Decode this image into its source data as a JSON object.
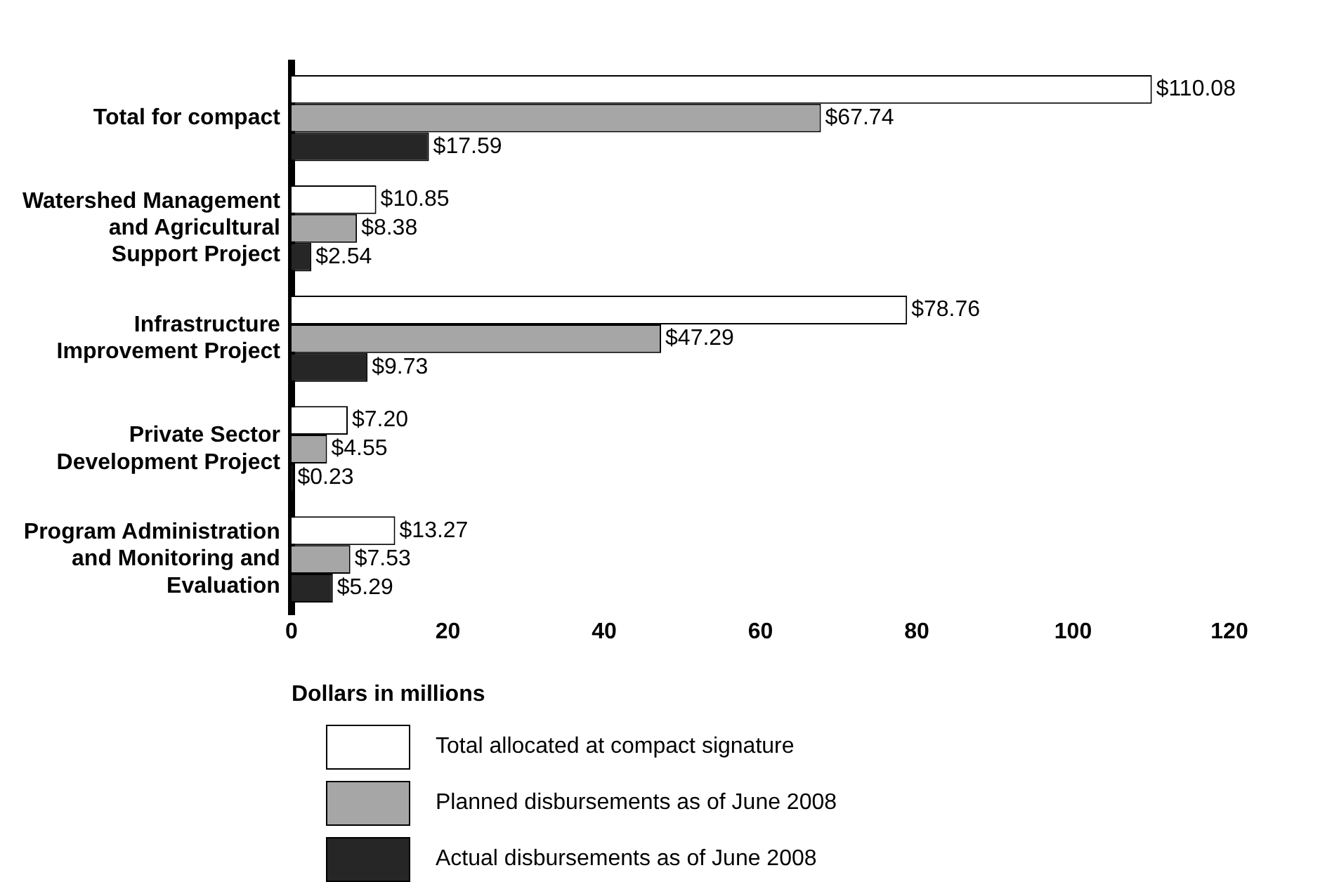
{
  "chart_data": {
    "type": "bar",
    "orientation": "horizontal",
    "xlabel": "Dollars in millions",
    "categories": [
      "Total for compact",
      "Watershed Management and Agricultural Support Project",
      "Infrastructure Improvement Project",
      "Private Sector Development Project",
      "Program Administration and Monitoring and Evaluation"
    ],
    "series": [
      {
        "name": "Total allocated at compact signature",
        "color": "#ffffff",
        "values": [
          110.08,
          10.85,
          78.76,
          7.2,
          13.27
        ],
        "value_labels": [
          "$110.08",
          "$10.85",
          "$78.76",
          "$7.20",
          "$13.27"
        ]
      },
      {
        "name": "Planned disbursements as of June 2008",
        "color": "#a6a6a6",
        "values": [
          67.74,
          8.38,
          47.29,
          4.55,
          7.53
        ],
        "value_labels": [
          "$67.74",
          "$8.38",
          "$47.29",
          "$4.55",
          "$7.53"
        ]
      },
      {
        "name": "Actual disbursements as of June 2008",
        "color": "#262626",
        "values": [
          17.59,
          2.54,
          9.73,
          0.23,
          5.29
        ],
        "value_labels": [
          "$17.59",
          "$2.54",
          "$9.73",
          "$0.23",
          "$5.29"
        ]
      }
    ],
    "xlim": [
      0,
      120
    ],
    "xticks": [
      0,
      20,
      40,
      60,
      80,
      100,
      120
    ],
    "grid": false,
    "legend": "bottom"
  }
}
